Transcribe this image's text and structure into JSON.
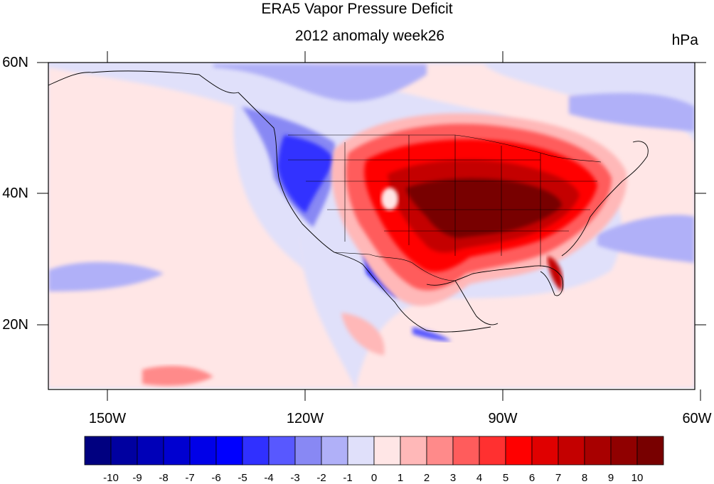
{
  "title": "ERA5 Vapor Pressure Deficit",
  "subtitle": "2012 anomaly week26",
  "units": "hPa",
  "lat_labels": [
    "60N",
    "40N",
    "20N"
  ],
  "lon_labels": [
    "150W",
    "120W",
    "90W",
    "60W"
  ],
  "colorbar": {
    "labels": [
      "-10",
      "-9",
      "-8",
      "-7",
      "-6",
      "-5",
      "-4",
      "-3",
      "-2",
      "-1",
      "0",
      "1",
      "2",
      "3",
      "4",
      "5",
      "6",
      "7",
      "8",
      "9",
      "10"
    ],
    "colors": [
      "#000080",
      "#0000a0",
      "#0000b8",
      "#0000d0",
      "#0000e8",
      "#0000ff",
      "#3030ff",
      "#5858ff",
      "#8888f4",
      "#b0b0f8",
      "#e0e0fa",
      "#ffe6e6",
      "#ffb8b8",
      "#ff8a8a",
      "#ff5c5c",
      "#ff3030",
      "#ff0000",
      "#e00000",
      "#c40000",
      "#a80000",
      "#900000",
      "#780000"
    ]
  },
  "map": {
    "projection": "cylindrical-equidistant",
    "lon_range": [
      -160,
      -60
    ],
    "lat_range": [
      10,
      60
    ],
    "background_color": "#e0e0fa",
    "coastline_color": "#000000"
  }
}
